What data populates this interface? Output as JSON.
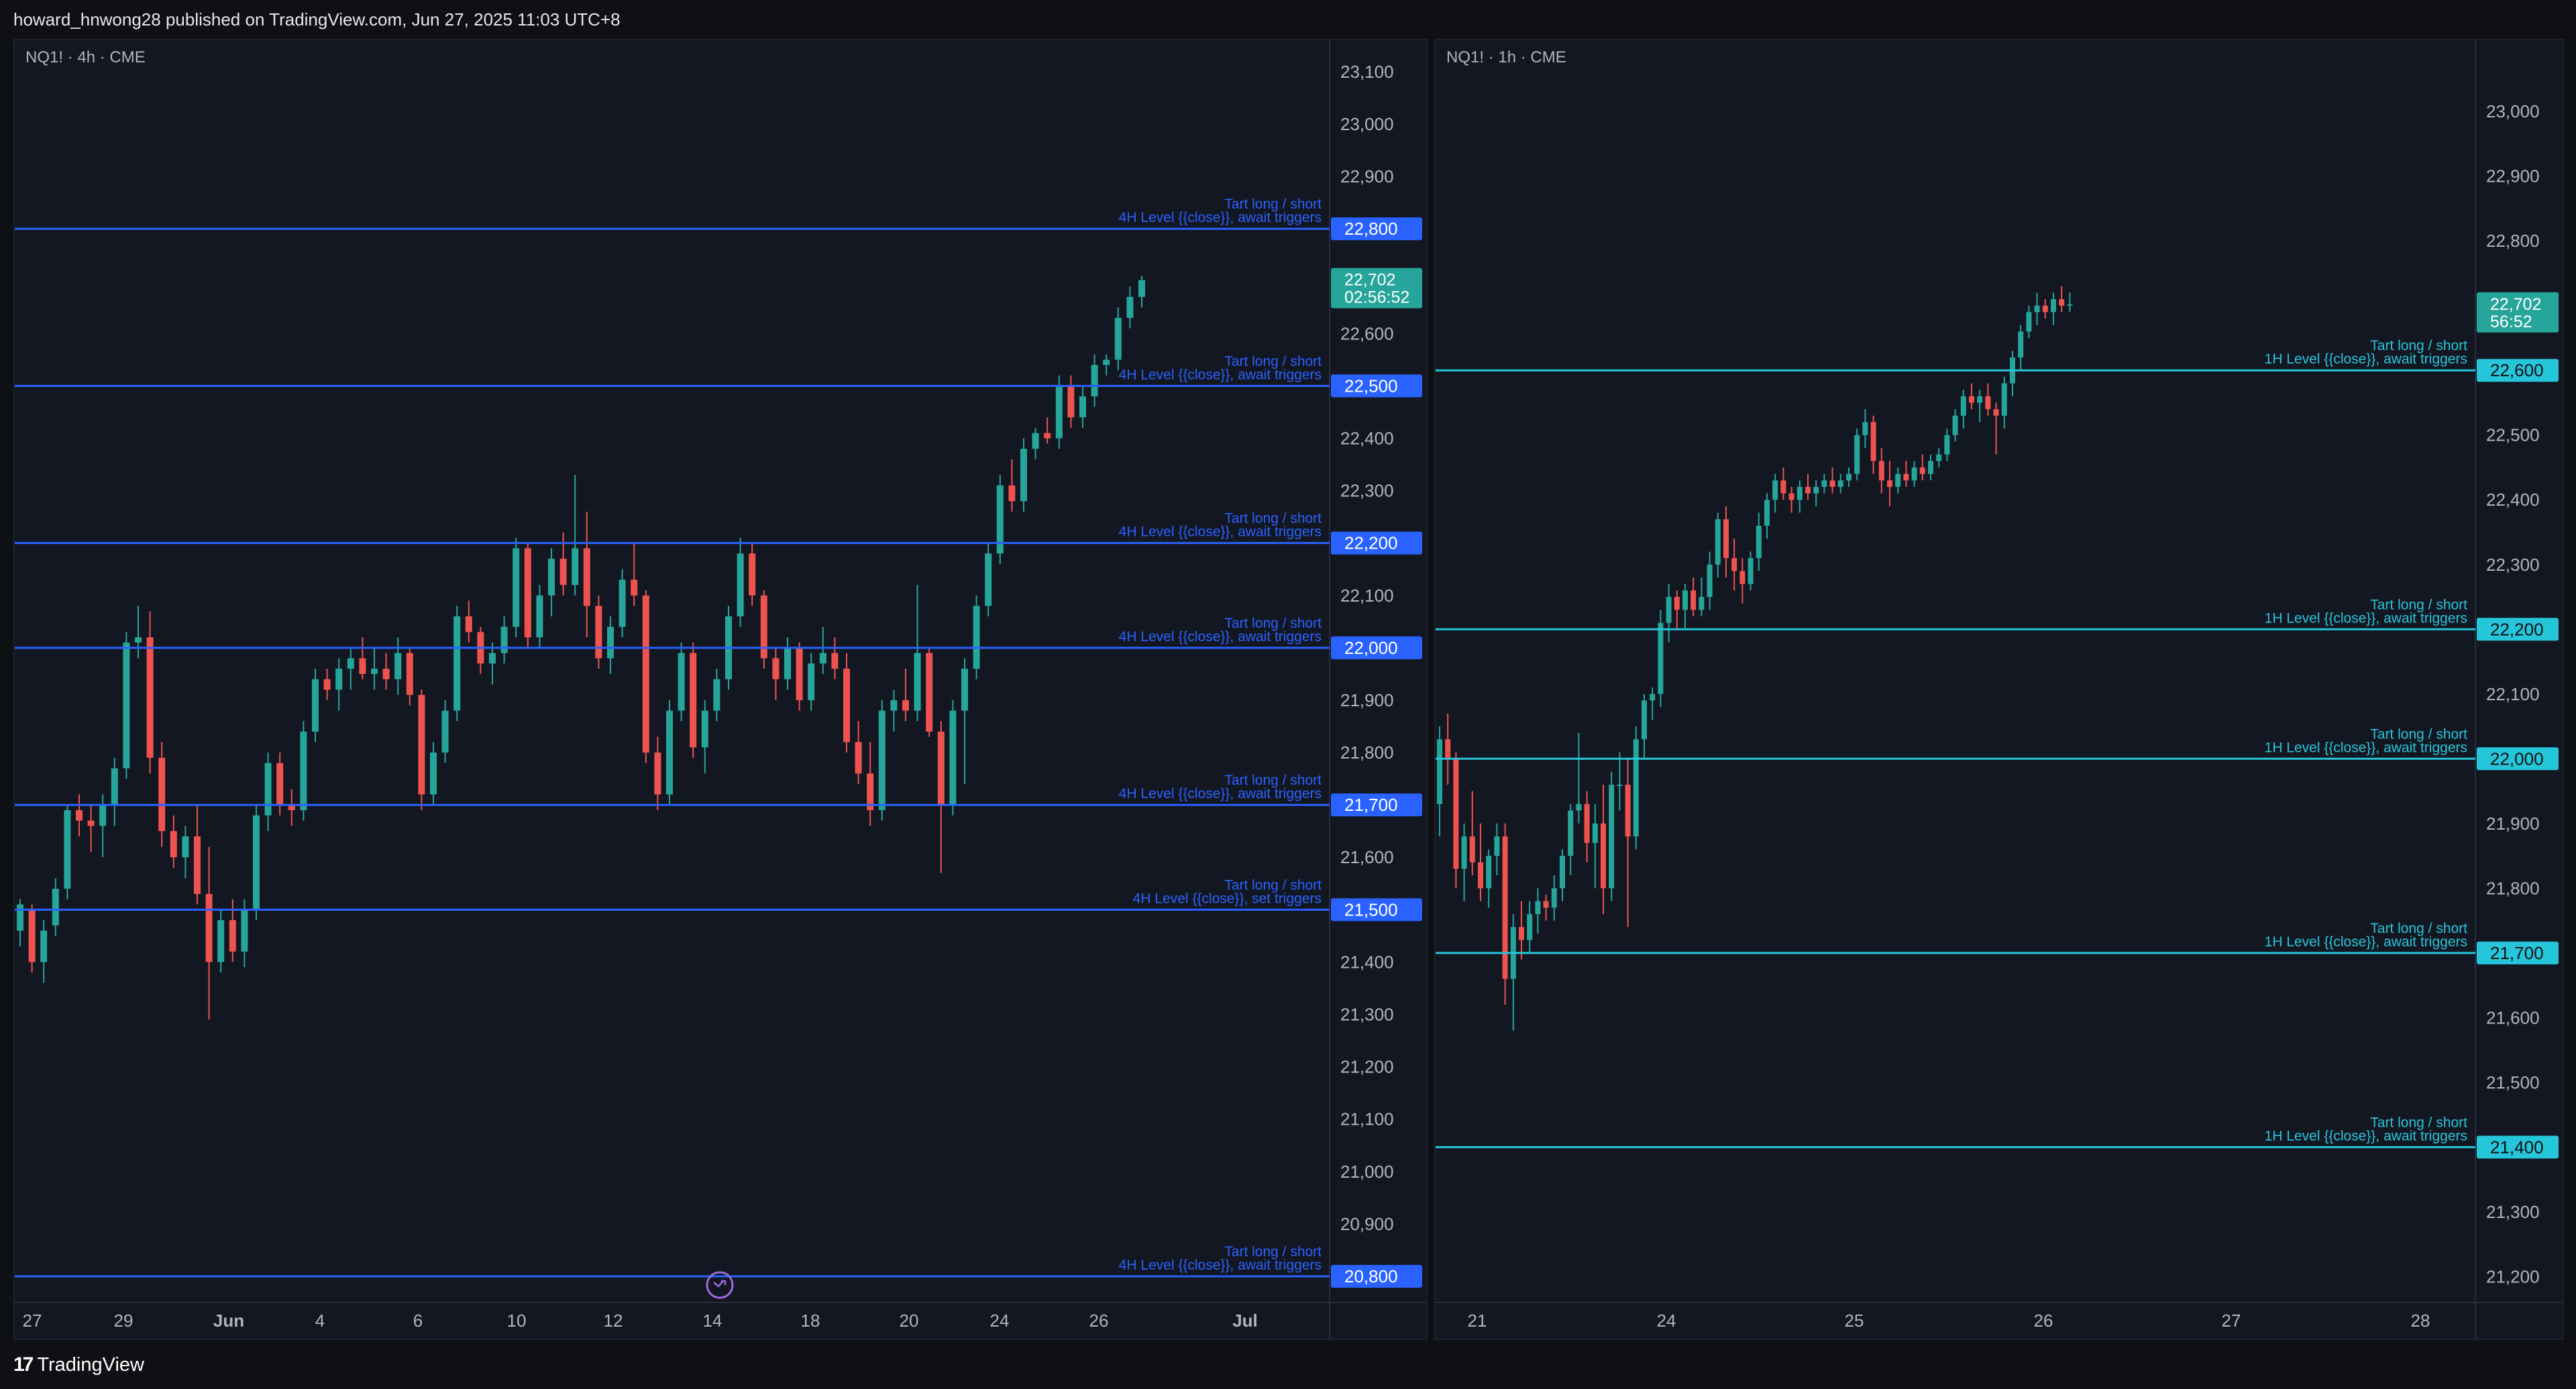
{
  "header": {
    "publish_text": "howard_hnwong28 published on TradingView.com, Jun 27, 2025 11:03 UTC+8"
  },
  "footer": {
    "logo_mark": "17",
    "logo_text": "TradingView"
  },
  "colors": {
    "up": "#26a69a",
    "down": "#ef5350",
    "level_4h": "#2962ff",
    "level_1h": "#26c6da",
    "last_price": "#26a69a",
    "background": "#131722"
  },
  "chart_data": [
    {
      "type": "candlestick",
      "symbol_label": "NQ1! · 4h · CME",
      "ylim": [
        20750,
        23160
      ],
      "y_ticks": [
        20800,
        20900,
        21000,
        21100,
        21200,
        21300,
        21400,
        21500,
        21600,
        21700,
        21800,
        21900,
        22000,
        22100,
        22200,
        22300,
        22400,
        22500,
        22600,
        22700,
        22800,
        22900,
        23000,
        23100
      ],
      "x_ticks": [
        "27",
        "29",
        "Jun",
        "4",
        "6",
        "10",
        "12",
        "14",
        "18",
        "20",
        "24",
        "26",
        "Jul"
      ],
      "candles": [
        [
          21460,
          21520,
          21430,
          21510
        ],
        [
          21500,
          21510,
          21380,
          21400
        ],
        [
          21400,
          21480,
          21360,
          21460
        ],
        [
          21470,
          21560,
          21450,
          21540
        ],
        [
          21540,
          21700,
          21520,
          21690
        ],
        [
          21690,
          21720,
          21640,
          21670
        ],
        [
          21670,
          21700,
          21610,
          21660
        ],
        [
          21660,
          21720,
          21600,
          21700
        ],
        [
          21700,
          21790,
          21660,
          21770
        ],
        [
          21770,
          22030,
          21750,
          22010
        ],
        [
          22010,
          22080,
          21980,
          22020
        ],
        [
          22020,
          22070,
          21760,
          21790
        ],
        [
          21790,
          21820,
          21620,
          21650
        ],
        [
          21650,
          21680,
          21580,
          21600
        ],
        [
          21600,
          21660,
          21560,
          21640
        ],
        [
          21640,
          21700,
          21510,
          21530
        ],
        [
          21530,
          21620,
          21290,
          21400
        ],
        [
          21400,
          21500,
          21380,
          21480
        ],
        [
          21480,
          21520,
          21400,
          21420
        ],
        [
          21420,
          21520,
          21390,
          21500
        ],
        [
          21500,
          21700,
          21480,
          21680
        ],
        [
          21680,
          21800,
          21650,
          21780
        ],
        [
          21780,
          21800,
          21680,
          21700
        ],
        [
          21700,
          21730,
          21660,
          21690
        ],
        [
          21690,
          21860,
          21670,
          21840
        ],
        [
          21840,
          21960,
          21820,
          21940
        ],
        [
          21940,
          21960,
          21900,
          21920
        ],
        [
          21920,
          21980,
          21880,
          21960
        ],
        [
          21960,
          22000,
          21920,
          21980
        ],
        [
          21980,
          22020,
          21940,
          21950
        ],
        [
          21950,
          22000,
          21920,
          21960
        ],
        [
          21960,
          21990,
          21920,
          21940
        ],
        [
          21940,
          22020,
          21910,
          21990
        ],
        [
          21990,
          22000,
          21890,
          21910
        ],
        [
          21910,
          21920,
          21690,
          21720
        ],
        [
          21720,
          21820,
          21700,
          21800
        ],
        [
          21800,
          21900,
          21780,
          21880
        ],
        [
          21880,
          22080,
          21860,
          22060
        ],
        [
          22060,
          22090,
          22010,
          22030
        ],
        [
          22030,
          22040,
          21950,
          21970
        ],
        [
          21970,
          22010,
          21930,
          21990
        ],
        [
          21990,
          22060,
          21970,
          22040
        ],
        [
          22040,
          22210,
          22020,
          22190
        ],
        [
          22190,
          22200,
          22000,
          22020
        ],
        [
          22020,
          22120,
          22000,
          22100
        ],
        [
          22100,
          22190,
          22060,
          22170
        ],
        [
          22170,
          22220,
          22100,
          22120
        ],
        [
          22120,
          22330,
          22100,
          22190
        ],
        [
          22190,
          22260,
          22020,
          22080
        ],
        [
          22080,
          22100,
          21960,
          21980
        ],
        [
          21980,
          22060,
          21950,
          22040
        ],
        [
          22040,
          22150,
          22020,
          22130
        ],
        [
          22130,
          22200,
          22080,
          22100
        ],
        [
          22100,
          22110,
          21780,
          21800
        ],
        [
          21800,
          21830,
          21690,
          21720
        ],
        [
          21720,
          21900,
          21700,
          21880
        ],
        [
          21880,
          22010,
          21860,
          21990
        ],
        [
          21990,
          22010,
          21790,
          21810
        ],
        [
          21810,
          21900,
          21760,
          21880
        ],
        [
          21880,
          21960,
          21860,
          21940
        ],
        [
          21940,
          22080,
          21920,
          22060
        ],
        [
          22060,
          22210,
          22040,
          22180
        ],
        [
          22180,
          22200,
          22080,
          22100
        ],
        [
          22100,
          22110,
          21960,
          21980
        ],
        [
          21980,
          22000,
          21900,
          21940
        ],
        [
          21940,
          22020,
          21920,
          22000
        ],
        [
          22000,
          22010,
          21880,
          21900
        ],
        [
          21900,
          21990,
          21880,
          21970
        ],
        [
          21970,
          22040,
          21950,
          21990
        ],
        [
          21990,
          22020,
          21940,
          21960
        ],
        [
          21960,
          21990,
          21800,
          21820
        ],
        [
          21820,
          21860,
          21740,
          21760
        ],
        [
          21760,
          21820,
          21660,
          21690
        ],
        [
          21690,
          21900,
          21670,
          21880
        ],
        [
          21880,
          21920,
          21840,
          21900
        ],
        [
          21900,
          21960,
          21860,
          21880
        ],
        [
          21880,
          22120,
          21860,
          21990
        ],
        [
          21990,
          22000,
          21830,
          21840
        ],
        [
          21840,
          21860,
          21570,
          21700
        ],
        [
          21700,
          21900,
          21680,
          21880
        ],
        [
          21880,
          21980,
          21740,
          21960
        ],
        [
          21960,
          22100,
          21940,
          22080
        ],
        [
          22080,
          22200,
          22060,
          22180
        ],
        [
          22180,
          22330,
          22160,
          22310
        ],
        [
          22310,
          22360,
          22260,
          22280
        ],
        [
          22280,
          22400,
          22260,
          22380
        ],
        [
          22380,
          22420,
          22360,
          22410
        ],
        [
          22410,
          22440,
          22390,
          22400
        ],
        [
          22400,
          22520,
          22380,
          22500
        ],
        [
          22500,
          22520,
          22420,
          22440
        ],
        [
          22440,
          22500,
          22420,
          22480
        ],
        [
          22480,
          22560,
          22460,
          22540
        ],
        [
          22540,
          22560,
          22520,
          22550
        ],
        [
          22550,
          22650,
          22530,
          22630
        ],
        [
          22630,
          22690,
          22610,
          22670
        ],
        [
          22670,
          22710,
          22650,
          22702
        ]
      ],
      "levels": [
        {
          "price": 22800,
          "label_1": "Tart long / short",
          "label_2": "4H Level {{close}}, await triggers",
          "tag": "22,800"
        },
        {
          "price": 22500,
          "label_1": "Tart long / short",
          "label_2": "4H Level {{close}}, await triggers",
          "tag": "22,500"
        },
        {
          "price": 22200,
          "label_1": "Tart long / short",
          "label_2": "4H Level {{close}}, await triggers",
          "tag": "22,200"
        },
        {
          "price": 22000,
          "label_1": "Tart long / short",
          "label_2": "4H Level {{close}}, await triggers",
          "tag": "22,000"
        },
        {
          "price": 21700,
          "label_1": "Tart long / short",
          "label_2": "4H Level {{close}}, await triggers",
          "tag": "21,700"
        },
        {
          "price": 21500,
          "label_1": "Tart long / short",
          "label_2": "4H Level {{close}}, set triggers",
          "tag": "21,500"
        },
        {
          "price": 20800,
          "label_1": "Tart long / short",
          "label_2": "4H Level {{close}}, await triggers",
          "tag": "20,800"
        }
      ],
      "last_price": {
        "value": 22702,
        "label": "22,702",
        "countdown": "02:56:52"
      },
      "marker_icon": "dividend-forward-icon"
    },
    {
      "type": "candlestick",
      "symbol_label": "NQ1! · 1h · CME",
      "ylim": [
        21160,
        23110
      ],
      "y_ticks": [
        21200,
        21300,
        21400,
        21500,
        21600,
        21700,
        21800,
        21900,
        22000,
        22100,
        22200,
        22300,
        22400,
        22500,
        22600,
        22700,
        22800,
        22900,
        23000
      ],
      "x_ticks": [
        "21",
        "24",
        "25",
        "26",
        "27",
        "28"
      ],
      "candles": [
        [
          21930,
          22050,
          21880,
          22030
        ],
        [
          22030,
          22070,
          21960,
          22000
        ],
        [
          22000,
          22010,
          21800,
          21830
        ],
        [
          21830,
          21900,
          21780,
          21880
        ],
        [
          21880,
          21950,
          21820,
          21840
        ],
        [
          21840,
          21900,
          21780,
          21800
        ],
        [
          21800,
          21860,
          21770,
          21850
        ],
        [
          21850,
          21900,
          21820,
          21880
        ],
        [
          21880,
          21900,
          21620,
          21660
        ],
        [
          21660,
          21760,
          21580,
          21740
        ],
        [
          21740,
          21780,
          21690,
          21720
        ],
        [
          21720,
          21780,
          21700,
          21760
        ],
        [
          21760,
          21800,
          21730,
          21780
        ],
        [
          21780,
          21790,
          21750,
          21770
        ],
        [
          21770,
          21820,
          21750,
          21800
        ],
        [
          21800,
          21860,
          21780,
          21850
        ],
        [
          21850,
          21930,
          21820,
          21920
        ],
        [
          21920,
          22040,
          21900,
          21930
        ],
        [
          21930,
          21950,
          21840,
          21870
        ],
        [
          21870,
          21930,
          21800,
          21900
        ],
        [
          21900,
          21960,
          21760,
          21800
        ],
        [
          21800,
          21980,
          21780,
          21960
        ],
        [
          21960,
          22010,
          21920,
          21960
        ],
        [
          21960,
          22000,
          21740,
          21880
        ],
        [
          21880,
          22050,
          21860,
          22030
        ],
        [
          22030,
          22100,
          22000,
          22090
        ],
        [
          22090,
          22110,
          22060,
          22100
        ],
        [
          22100,
          22230,
          22080,
          22210
        ],
        [
          22210,
          22270,
          22180,
          22250
        ],
        [
          22250,
          22260,
          22200,
          22230
        ],
        [
          22230,
          22270,
          22200,
          22260
        ],
        [
          22260,
          22280,
          22220,
          22230
        ],
        [
          22230,
          22280,
          22220,
          22250
        ],
        [
          22250,
          22320,
          22230,
          22300
        ],
        [
          22300,
          22380,
          22280,
          22370
        ],
        [
          22370,
          22390,
          22280,
          22310
        ],
        [
          22310,
          22340,
          22260,
          22290
        ],
        [
          22290,
          22310,
          22240,
          22270
        ],
        [
          22270,
          22320,
          22260,
          22310
        ],
        [
          22310,
          22380,
          22290,
          22360
        ],
        [
          22360,
          22410,
          22340,
          22400
        ],
        [
          22400,
          22440,
          22380,
          22430
        ],
        [
          22430,
          22450,
          22400,
          22410
        ],
        [
          22410,
          22420,
          22380,
          22400
        ],
        [
          22400,
          22430,
          22380,
          22420
        ],
        [
          22420,
          22440,
          22400,
          22410
        ],
        [
          22410,
          22430,
          22390,
          22420
        ],
        [
          22420,
          22440,
          22410,
          22430
        ],
        [
          22430,
          22450,
          22410,
          22420
        ],
        [
          22420,
          22440,
          22410,
          22430
        ],
        [
          22430,
          22450,
          22420,
          22440
        ],
        [
          22440,
          22510,
          22430,
          22500
        ],
        [
          22500,
          22540,
          22480,
          22520
        ],
        [
          22520,
          22530,
          22440,
          22460
        ],
        [
          22460,
          22480,
          22410,
          22430
        ],
        [
          22430,
          22460,
          22390,
          22420
        ],
        [
          22420,
          22450,
          22410,
          22440
        ],
        [
          22440,
          22460,
          22420,
          22430
        ],
        [
          22430,
          22460,
          22420,
          22450
        ],
        [
          22450,
          22470,
          22430,
          22440
        ],
        [
          22440,
          22470,
          22430,
          22460
        ],
        [
          22460,
          22480,
          22450,
          22470
        ],
        [
          22470,
          22510,
          22460,
          22500
        ],
        [
          22500,
          22540,
          22490,
          22530
        ],
        [
          22530,
          22570,
          22510,
          22560
        ],
        [
          22560,
          22580,
          22540,
          22550
        ],
        [
          22550,
          22570,
          22520,
          22560
        ],
        [
          22560,
          22580,
          22530,
          22540
        ],
        [
          22540,
          22550,
          22470,
          22530
        ],
        [
          22530,
          22590,
          22510,
          22580
        ],
        [
          22580,
          22630,
          22560,
          22620
        ],
        [
          22620,
          22670,
          22600,
          22660
        ],
        [
          22660,
          22700,
          22650,
          22690
        ],
        [
          22690,
          22720,
          22670,
          22700
        ],
        [
          22700,
          22710,
          22680,
          22690
        ],
        [
          22690,
          22720,
          22670,
          22710
        ],
        [
          22710,
          22730,
          22690,
          22700
        ],
        [
          22700,
          22720,
          22690,
          22702
        ]
      ],
      "levels": [
        {
          "price": 22600,
          "label_1": "Tart long / short",
          "label_2": "1H Level {{close}}, await triggers",
          "tag": "22,600"
        },
        {
          "price": 22200,
          "label_1": "Tart long / short",
          "label_2": "1H Level {{close}}, await triggers",
          "tag": "22,200"
        },
        {
          "price": 22000,
          "label_1": "Tart long / short",
          "label_2": "1H Level {{close}}, await triggers",
          "tag": "22,000"
        },
        {
          "price": 21700,
          "label_1": "Tart long / short",
          "label_2": "1H Level {{close}}, await triggers",
          "tag": "21,700"
        },
        {
          "price": 21400,
          "label_1": "Tart long / short",
          "label_2": "1H Level {{close}}, await triggers",
          "tag": "21,400"
        }
      ],
      "last_price": {
        "value": 22702,
        "label": "22,702",
        "countdown": "56:52"
      }
    }
  ]
}
